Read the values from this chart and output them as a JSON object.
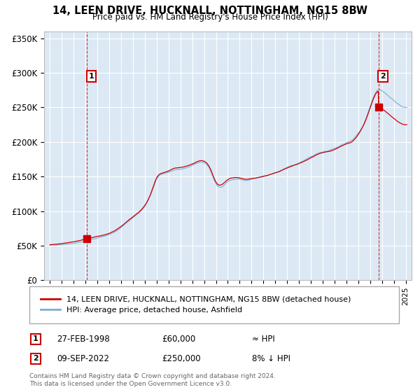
{
  "title": "14, LEEN DRIVE, HUCKNALL, NOTTINGHAM, NG15 8BW",
  "subtitle": "Price paid vs. HM Land Registry's House Price Index (HPI)",
  "property_label": "14, LEEN DRIVE, HUCKNALL, NOTTINGHAM, NG15 8BW (detached house)",
  "hpi_label": "HPI: Average price, detached house, Ashfield",
  "sale1_date": "27-FEB-1998",
  "sale1_price": 60000,
  "sale1_note": "≈ HPI",
  "sale2_date": "09-SEP-2022",
  "sale2_price": 250000,
  "sale2_note": "8% ↓ HPI",
  "footer": "Contains HM Land Registry data © Crown copyright and database right 2024.\nThis data is licensed under the Open Government Licence v3.0.",
  "property_color": "#cc0000",
  "hpi_color": "#7aafd4",
  "bg_color": "#dce9f5",
  "ylim": [
    0,
    360000
  ],
  "yticks": [
    0,
    50000,
    100000,
    150000,
    200000,
    250000,
    300000,
    350000
  ],
  "ytick_labels": [
    "£0",
    "£50K",
    "£100K",
    "£150K",
    "£200K",
    "£250K",
    "£300K",
    "£350K"
  ],
  "xlim_start": 1994.5,
  "xlim_end": 2025.5
}
